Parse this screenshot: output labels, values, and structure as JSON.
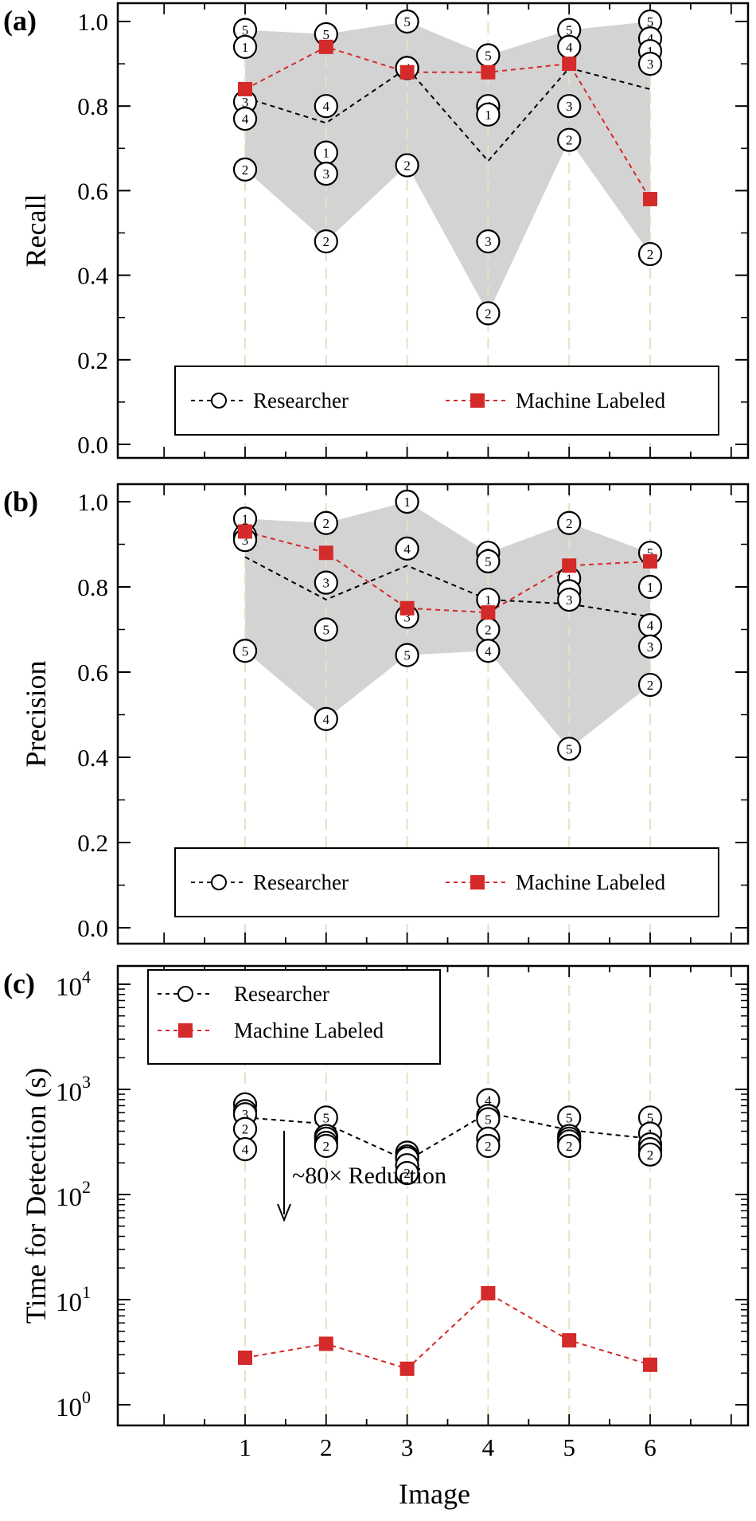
{
  "colors": {
    "researcher": "#000000",
    "machine": "#d42a2a",
    "band": "#d3d3d3",
    "gridline": "#e8dfc4"
  },
  "shared": {
    "categories": [
      1,
      2,
      3,
      4,
      5,
      6
    ],
    "xlabel": "Image",
    "legend_researcher": "Researcher",
    "legend_machine": "Machine Labeled"
  },
  "chart_data": [
    {
      "panel": "(a)",
      "type": "line",
      "ylabel": "Recall",
      "ylim": [
        0,
        1.05
      ],
      "yticks": [
        "0.0",
        "0.2",
        "0.4",
        "0.6",
        "0.8",
        "1.0"
      ],
      "legend_position": "bottom",
      "band": {
        "lower": [
          0.65,
          0.48,
          0.66,
          0.31,
          0.72,
          0.45
        ],
        "upper": [
          0.98,
          0.97,
          1.0,
          0.92,
          0.98,
          1.0
        ]
      },
      "series": [
        {
          "name": "Researcher",
          "values": [
            0.82,
            0.76,
            0.89,
            0.67,
            0.89,
            0.84
          ]
        },
        {
          "name": "Machine Labeled",
          "values": [
            0.84,
            0.94,
            0.88,
            0.88,
            0.9,
            0.58
          ]
        }
      ],
      "researcher_points": [
        [
          {
            "label": "5",
            "value": 0.98
          },
          {
            "label": "1",
            "value": 0.94
          },
          {
            "label": "3",
            "value": 0.81
          },
          {
            "label": "4",
            "value": 0.77
          },
          {
            "label": "2",
            "value": 0.65
          }
        ],
        [
          {
            "label": "5",
            "value": 0.97
          },
          {
            "label": "4",
            "value": 0.8
          },
          {
            "label": "1",
            "value": 0.69
          },
          {
            "label": "3",
            "value": 0.64
          },
          {
            "label": "2",
            "value": 0.48
          }
        ],
        [
          {
            "label": "5",
            "value": 1.0
          },
          {
            "label": "1",
            "value": 0.89
          },
          {
            "label": "4",
            "value": 0.89
          },
          {
            "label": "2",
            "value": 0.66
          }
        ],
        [
          {
            "label": "5",
            "value": 0.92
          },
          {
            "label": "4",
            "value": 0.8
          },
          {
            "label": "1",
            "value": 0.78
          },
          {
            "label": "3",
            "value": 0.48
          },
          {
            "label": "2",
            "value": 0.31
          }
        ],
        [
          {
            "label": "5",
            "value": 0.98
          },
          {
            "label": "4",
            "value": 0.94
          },
          {
            "label": "3",
            "value": 0.8
          },
          {
            "label": "2",
            "value": 0.72
          }
        ],
        [
          {
            "label": "5",
            "value": 1.0
          },
          {
            "label": "4",
            "value": 0.96
          },
          {
            "label": "1",
            "value": 0.93
          },
          {
            "label": "3",
            "value": 0.9
          },
          {
            "label": "2",
            "value": 0.45
          }
        ]
      ]
    },
    {
      "panel": "(b)",
      "type": "line",
      "ylabel": "Precision",
      "ylim": [
        0,
        1.05
      ],
      "yticks": [
        "0.0",
        "0.2",
        "0.4",
        "0.6",
        "0.8",
        "1.0"
      ],
      "legend_position": "bottom",
      "band": {
        "lower": [
          0.65,
          0.49,
          0.64,
          0.65,
          0.42,
          0.57
        ],
        "upper": [
          0.96,
          0.95,
          1.0,
          0.88,
          0.95,
          0.88
        ]
      },
      "series": [
        {
          "name": "Researcher",
          "values": [
            0.87,
            0.77,
            0.85,
            0.77,
            0.76,
            0.73
          ]
        },
        {
          "name": "Machine Labeled",
          "values": [
            0.93,
            0.88,
            0.75,
            0.74,
            0.85,
            0.86
          ]
        }
      ],
      "researcher_points": [
        [
          {
            "label": "1",
            "value": 0.96
          },
          {
            "label": "4",
            "value": 0.92
          },
          {
            "label": "3",
            "value": 0.91
          },
          {
            "label": "5",
            "value": 0.65
          }
        ],
        [
          {
            "label": "2",
            "value": 0.95
          },
          {
            "label": "3",
            "value": 0.81
          },
          {
            "label": "5",
            "value": 0.7
          },
          {
            "label": "4",
            "value": 0.49
          }
        ],
        [
          {
            "label": "2",
            "value": 1.0
          },
          {
            "label": "1",
            "value": 1.0
          },
          {
            "label": "4",
            "value": 0.89
          },
          {
            "label": "3",
            "value": 0.73
          },
          {
            "label": "5",
            "value": 0.64
          }
        ],
        [
          {
            "label": "3",
            "value": 0.88
          },
          {
            "label": "5",
            "value": 0.86
          },
          {
            "label": "1",
            "value": 0.77
          },
          {
            "label": "2",
            "value": 0.7
          },
          {
            "label": "4",
            "value": 0.65
          }
        ],
        [
          {
            "label": "2",
            "value": 0.95
          },
          {
            "label": "1",
            "value": 0.82
          },
          {
            "label": "4",
            "value": 0.79
          },
          {
            "label": "3",
            "value": 0.77
          },
          {
            "label": "5",
            "value": 0.42
          }
        ],
        [
          {
            "label": "5",
            "value": 0.88
          },
          {
            "label": "1",
            "value": 0.8
          },
          {
            "label": "4",
            "value": 0.71
          },
          {
            "label": "3",
            "value": 0.66
          },
          {
            "label": "2",
            "value": 0.57
          }
        ]
      ]
    },
    {
      "panel": "(c)",
      "type": "line",
      "ylabel": "Time for Detection (s)",
      "yscale": "log",
      "ylim": [
        0.7,
        15000
      ],
      "yticks": [
        {
          "base": "10",
          "exp": "0",
          "value": 1
        },
        {
          "base": "10",
          "exp": "1",
          "value": 10
        },
        {
          "base": "10",
          "exp": "2",
          "value": 100
        },
        {
          "base": "10",
          "exp": "3",
          "value": 1000
        },
        {
          "base": "10",
          "exp": "4",
          "value": 10000
        }
      ],
      "legend_position": "top-left",
      "annotation": "~80× Reduction",
      "series": [
        {
          "name": "Researcher",
          "values": [
            540,
            470,
            210,
            600,
            410,
            340
          ]
        },
        {
          "name": "Machine Labeled",
          "values": [
            2.8,
            3.8,
            2.2,
            11.5,
            4.1,
            2.4
          ]
        }
      ],
      "researcher_points": [
        [
          {
            "label": "1",
            "value": 720
          },
          {
            "label": "5",
            "value": 620
          },
          {
            "label": "3",
            "value": 580
          },
          {
            "label": "2",
            "value": 420
          },
          {
            "label": "4",
            "value": 270
          }
        ],
        [
          {
            "label": "5",
            "value": 540
          },
          {
            "label": "1",
            "value": 360
          },
          {
            "label": "4",
            "value": 340
          },
          {
            "label": "3",
            "value": 310
          },
          {
            "label": "2",
            "value": 290
          }
        ],
        [
          {
            "label": "5",
            "value": 250
          },
          {
            "label": "4",
            "value": 230
          },
          {
            "label": "1",
            "value": 220
          },
          {
            "label": "3",
            "value": 190
          },
          {
            "label": "2",
            "value": 160
          }
        ],
        [
          {
            "label": "4",
            "value": 790
          },
          {
            "label": "1",
            "value": 560
          },
          {
            "label": "5",
            "value": 520
          },
          {
            "label": "3",
            "value": 340
          },
          {
            "label": "2",
            "value": 290
          }
        ],
        [
          {
            "label": "5",
            "value": 540
          },
          {
            "label": "1",
            "value": 360
          },
          {
            "label": "4",
            "value": 340
          },
          {
            "label": "3",
            "value": 320
          },
          {
            "label": "2",
            "value": 290
          }
        ],
        [
          {
            "label": "5",
            "value": 540
          },
          {
            "label": "1",
            "value": 380
          },
          {
            "label": "3",
            "value": 300
          },
          {
            "label": "4",
            "value": 270
          },
          {
            "label": "2",
            "value": 240
          }
        ]
      ]
    }
  ]
}
